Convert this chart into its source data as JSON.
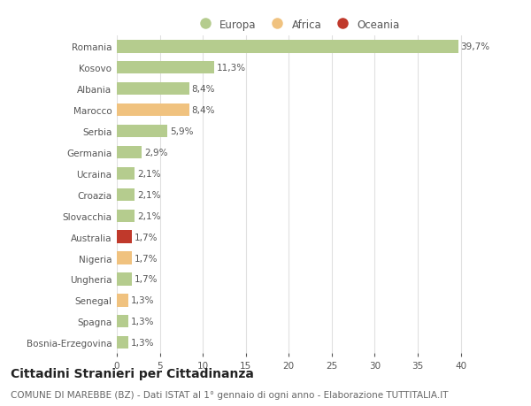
{
  "countries": [
    "Romania",
    "Kosovo",
    "Albania",
    "Marocco",
    "Serbia",
    "Germania",
    "Ucraina",
    "Croazia",
    "Slovacchia",
    "Australia",
    "Nigeria",
    "Ungheria",
    "Senegal",
    "Spagna",
    "Bosnia-Erzegovina"
  ],
  "values": [
    39.7,
    11.3,
    8.4,
    8.4,
    5.9,
    2.9,
    2.1,
    2.1,
    2.1,
    1.7,
    1.7,
    1.7,
    1.3,
    1.3,
    1.3
  ],
  "labels": [
    "39,7%",
    "11,3%",
    "8,4%",
    "8,4%",
    "5,9%",
    "2,9%",
    "2,1%",
    "2,1%",
    "2,1%",
    "1,7%",
    "1,7%",
    "1,7%",
    "1,3%",
    "1,3%",
    "1,3%"
  ],
  "bar_colors": [
    "#b5cc8e",
    "#b5cc8e",
    "#b5cc8e",
    "#f0c27f",
    "#b5cc8e",
    "#b5cc8e",
    "#b5cc8e",
    "#b5cc8e",
    "#b5cc8e",
    "#c0392b",
    "#f0c27f",
    "#b5cc8e",
    "#f0c27f",
    "#b5cc8e",
    "#b5cc8e"
  ],
  "legend_items": [
    {
      "label": "Europa",
      "color": "#b5cc8e"
    },
    {
      "label": "Africa",
      "color": "#f0c27f"
    },
    {
      "label": "Oceania",
      "color": "#c0392b"
    }
  ],
  "title": "Cittadini Stranieri per Cittadinanza",
  "subtitle": "COMUNE DI MAREBBE (BZ) - Dati ISTAT al 1° gennaio di ogni anno - Elaborazione TUTTITALIA.IT",
  "xlim": [
    0,
    42
  ],
  "xticks": [
    0,
    5,
    10,
    15,
    20,
    25,
    30,
    35,
    40
  ],
  "background_color": "#ffffff",
  "grid_color": "#e0e0e0",
  "bar_height": 0.6,
  "title_fontsize": 10,
  "subtitle_fontsize": 7.5,
  "label_fontsize": 7.5,
  "tick_fontsize": 7.5,
  "legend_fontsize": 8.5
}
